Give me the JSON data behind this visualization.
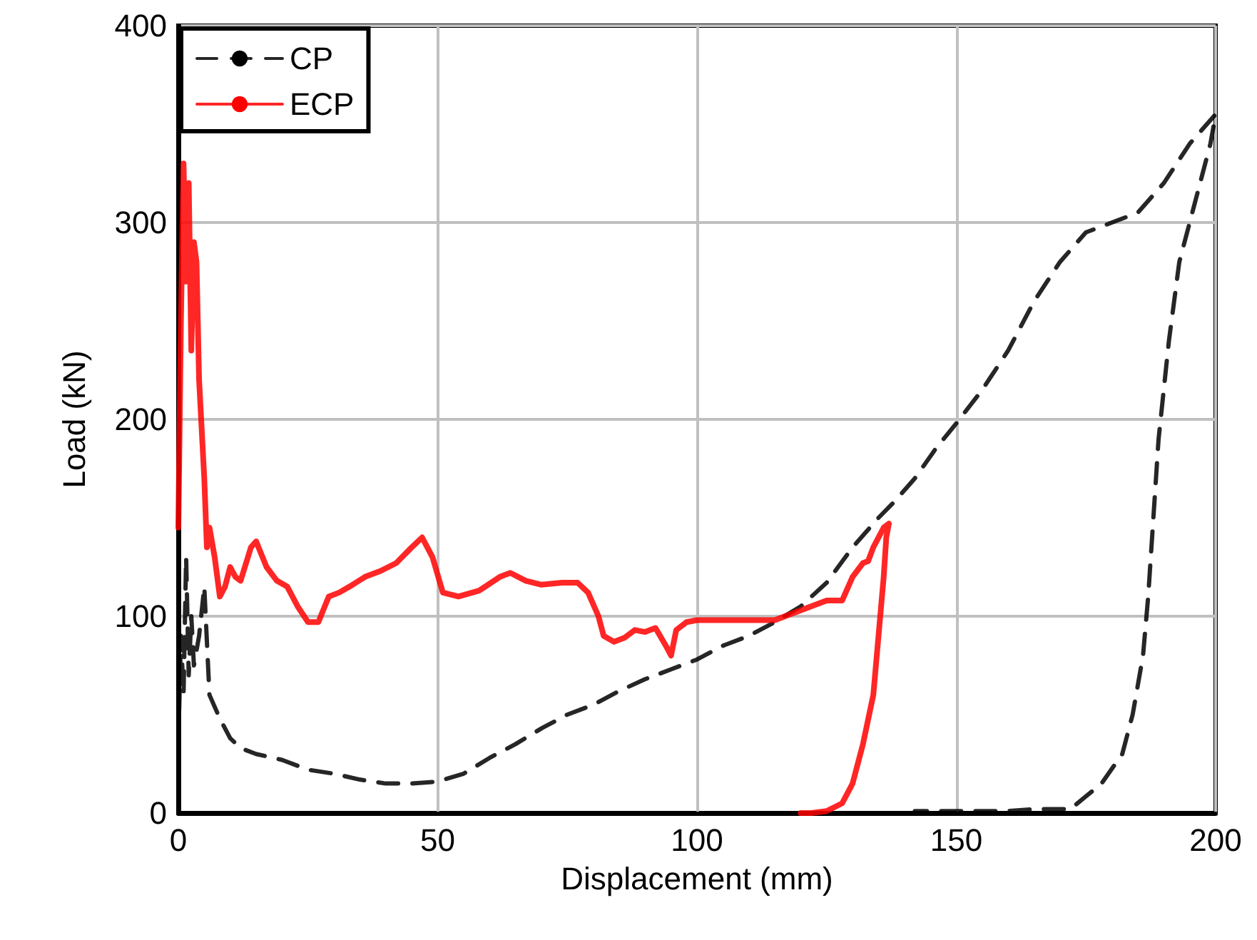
{
  "chart_data": {
    "type": "line",
    "xlabel": "Displacement (mm)",
    "ylabel": "Load (kN)",
    "xlim": [
      0,
      200
    ],
    "xticks": [
      0,
      50,
      100,
      150,
      200
    ],
    "ylim": [
      0,
      400
    ],
    "yticks": [
      0,
      100,
      200,
      300,
      400
    ],
    "grid": true,
    "legend": "top left",
    "marker": "none",
    "series": [
      {
        "name": "CP",
        "color": "#000000",
        "line_style": "dashed",
        "x": [
          0,
          0.5,
          1,
          1.5,
          2,
          2.5,
          3,
          4,
          5,
          6,
          8,
          10,
          12,
          15,
          20,
          25,
          30,
          35,
          40,
          45,
          50,
          55,
          60,
          65,
          70,
          75,
          80,
          85,
          90,
          95,
          100,
          105,
          110,
          115,
          120,
          125,
          130,
          135,
          138,
          142,
          146,
          150,
          155,
          160,
          165,
          170,
          175,
          180,
          185,
          190,
          195,
          200,
          199,
          197,
          195,
          193,
          191,
          189,
          188,
          187,
          186,
          184,
          182,
          178,
          172,
          165,
          160,
          150,
          142
        ],
        "values": [
          35,
          90,
          60,
          130,
          70,
          100,
          75,
          90,
          115,
          60,
          48,
          38,
          33,
          30,
          27,
          22,
          20,
          17,
          15,
          15,
          16,
          20,
          28,
          35,
          43,
          50,
          55,
          62,
          68,
          73,
          78,
          85,
          90,
          97,
          105,
          117,
          135,
          150,
          158,
          170,
          185,
          198,
          215,
          235,
          260,
          280,
          295,
          300,
          305,
          320,
          340,
          355,
          340,
          320,
          300,
          280,
          240,
          190,
          150,
          110,
          80,
          50,
          30,
          15,
          2,
          2,
          1,
          1,
          1
        ]
      },
      {
        "name": "ECP",
        "color": "#ff0000",
        "line_style": "solid",
        "x": [
          0,
          0.5,
          1,
          1.5,
          2,
          2.5,
          3,
          3.5,
          4,
          5,
          5.5,
          6,
          7,
          8,
          9,
          10,
          11,
          12,
          14,
          15,
          17,
          19,
          21,
          23,
          25,
          27,
          29,
          31,
          33,
          36,
          39,
          42,
          45,
          47,
          49,
          51,
          54,
          58,
          62,
          64,
          67,
          70,
          74,
          77,
          79,
          81,
          82,
          84,
          86,
          88,
          90,
          92,
          94,
          95,
          96,
          98,
          100,
          105,
          110,
          115,
          120,
          125,
          128,
          130,
          132,
          133,
          134,
          135,
          136,
          137,
          136.5,
          136,
          135,
          134,
          132,
          130,
          128,
          125,
          122,
          120
        ],
        "values": [
          145,
          250,
          330,
          270,
          320,
          235,
          290,
          280,
          220,
          170,
          135,
          145,
          130,
          110,
          115,
          125,
          120,
          118,
          135,
          138,
          125,
          118,
          115,
          105,
          97,
          97,
          110,
          112,
          115,
          120,
          123,
          127,
          135,
          140,
          130,
          112,
          110,
          113,
          120,
          122,
          118,
          116,
          117,
          117,
          112,
          100,
          90,
          87,
          89,
          93,
          92,
          94,
          85,
          80,
          93,
          97,
          98,
          98,
          98,
          98,
          103,
          108,
          108,
          120,
          127,
          128,
          135,
          140,
          145,
          147,
          140,
          120,
          90,
          60,
          35,
          15,
          5,
          1,
          0,
          0
        ]
      }
    ]
  }
}
